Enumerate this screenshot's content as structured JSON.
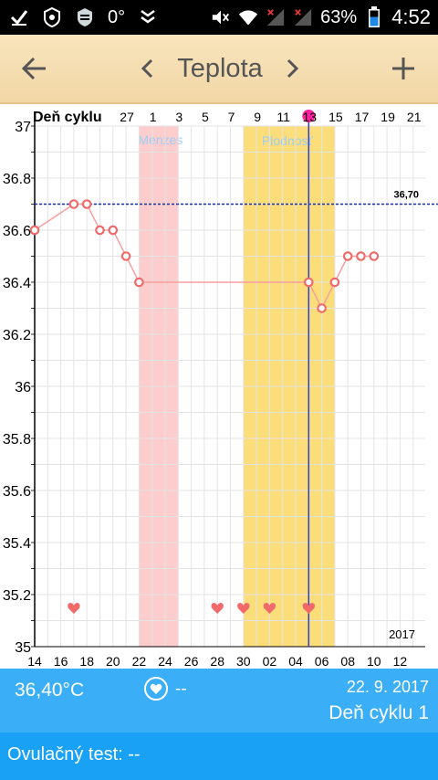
{
  "status_bar": {
    "left_icons": [
      "checkmark-icon",
      "shield-badge-icon",
      "shield-icon",
      "chevrons-down-icon"
    ],
    "temperature_text": "0°",
    "battery_percent_text": "63%",
    "time": "4:52"
  },
  "header": {
    "title": "Teplota",
    "back_icon": "arrow-left-icon",
    "prev_icon": "chevron-left-icon",
    "next_icon": "chevron-right-icon",
    "add_icon": "plus-icon"
  },
  "chart_data": {
    "type": "line",
    "title": "",
    "cycle_axis_label": "Deň cyklu",
    "cycle_tick_labels": [
      "27",
      "1",
      "3",
      "5",
      "7",
      "9",
      "11",
      "13",
      "15",
      "17",
      "19",
      "21"
    ],
    "date_tick_labels": [
      "14",
      "16",
      "18",
      "20",
      "22",
      "24",
      "26",
      "28",
      "30",
      "02",
      "04",
      "06",
      "08",
      "10",
      "12"
    ],
    "y_tick_labels": [
      "37",
      "36.8",
      "36.6",
      "36.4",
      "36.2",
      "36",
      "35.8",
      "35.6",
      "35.4",
      "35.2",
      "35"
    ],
    "ylim": [
      35,
      37
    ],
    "year_label": "2017",
    "threshold": {
      "value": 36.7,
      "label": "36,70"
    },
    "menstruation_band": {
      "label": "Menzes",
      "from_day": 22,
      "to_day": 25
    },
    "fertile_band": {
      "label": "Plodnosť",
      "from_day": 30,
      "to_day": 37
    },
    "selected_day": 35,
    "temperatures": [
      {
        "day": 14,
        "temp": 36.6
      },
      {
        "day": 17,
        "temp": 36.7
      },
      {
        "day": 18,
        "temp": 36.7
      },
      {
        "day": 19,
        "temp": 36.6
      },
      {
        "day": 20,
        "temp": 36.6
      },
      {
        "day": 21,
        "temp": 36.5
      },
      {
        "day": 22,
        "temp": 36.4
      },
      {
        "day": 35,
        "temp": 36.4
      },
      {
        "day": 36,
        "temp": 36.3
      },
      {
        "day": 37,
        "temp": 36.4
      },
      {
        "day": 38,
        "temp": 36.5
      },
      {
        "day": 39,
        "temp": 36.5
      },
      {
        "day": 40,
        "temp": 36.5
      }
    ],
    "intercourse_days": [
      17,
      28,
      30,
      32,
      35
    ],
    "grid": true,
    "colors": {
      "line": "#f5a0a0",
      "marker": "#f06a6a",
      "menstruation": "#fdcdcd",
      "fertile": "#fbdd79",
      "selected": "#2f3fcf",
      "threshold": "#1a2fa8",
      "selected_dot": "#ff1fa0"
    }
  },
  "info": {
    "temperature": "36,40°C",
    "intercourse": "--",
    "date": "22. 9. 2017",
    "cycle_day": "Deň cyklu 1",
    "ovulation_test": "Ovulačný test: --"
  }
}
